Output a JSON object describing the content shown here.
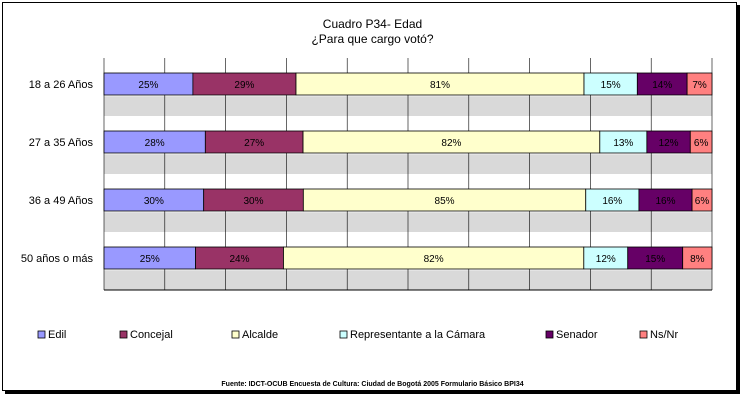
{
  "chart_data": {
    "type": "bar",
    "orientation": "horizontal",
    "stacked": true,
    "title": "Cuadro P34- Edad",
    "subtitle": "¿Para que cargo votó?",
    "categories": [
      "18 a 26 Años",
      "27 a 35 Años",
      "36 a 49 Años",
      "50 años o más"
    ],
    "series": [
      {
        "name": "Edil",
        "color": "#9999ff",
        "values": [
          25,
          28,
          30,
          25
        ]
      },
      {
        "name": "Concejal",
        "color": "#993366",
        "values": [
          29,
          27,
          30,
          24
        ]
      },
      {
        "name": "Alcalde",
        "color": "#ffffcc",
        "values": [
          81,
          82,
          85,
          82
        ]
      },
      {
        "name": "Representante a la Cámara",
        "color": "#ccffff",
        "values": [
          15,
          13,
          16,
          12
        ]
      },
      {
        "name": "Senador",
        "color": "#660066",
        "values": [
          14,
          12,
          16,
          15
        ]
      },
      {
        "name": "Ns/Nr",
        "color": "#ff8080",
        "values": [
          7,
          6,
          6,
          8
        ]
      }
    ],
    "grid": true,
    "legend_position": "bottom",
    "source": "Fuente: IDCT-OCUB Encuesta de Cultura: Ciudad de Bogotá 2005 Formulario Básico BPI34"
  }
}
